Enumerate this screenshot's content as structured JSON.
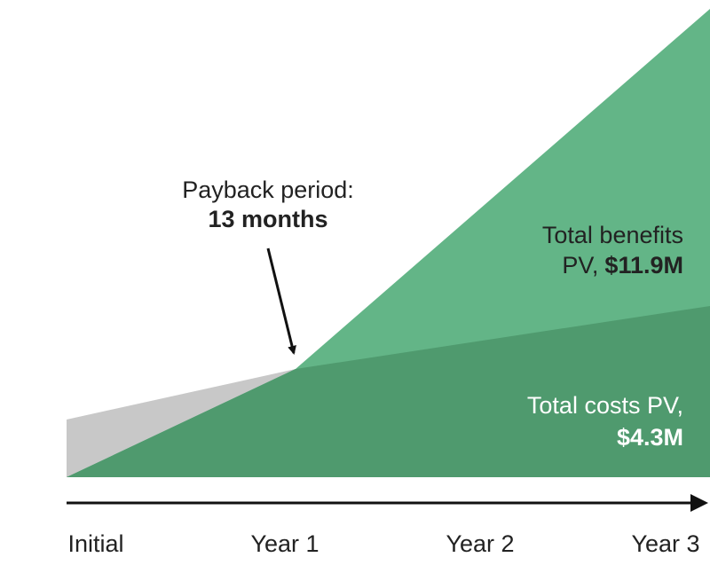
{
  "annotation": {
    "text": "Payback period:",
    "value": "13 months"
  },
  "benefits": {
    "text": "Total benefits",
    "prefix": "PV,",
    "value": "$11.9M"
  },
  "costs": {
    "text": "Total costs PV,",
    "value": "$4.3M"
  },
  "x_axis": {
    "labels": [
      "Initial",
      "Year 1",
      "Year 2",
      "Year 3"
    ]
  }
}
